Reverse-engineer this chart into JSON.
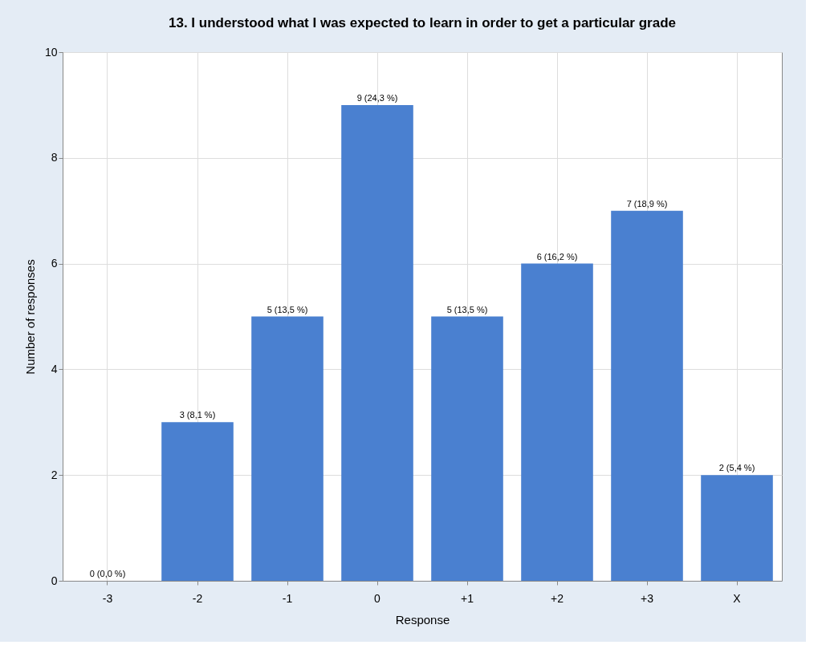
{
  "chart_data": {
    "type": "bar",
    "title": "13. I understood what I was expected to learn in order to get a particular grade",
    "xlabel": "Response",
    "ylabel": "Number of responses",
    "categories": [
      "-3",
      "-2",
      "-1",
      "0",
      "+1",
      "+2",
      "+3",
      "X"
    ],
    "values": [
      0,
      3,
      5,
      9,
      5,
      6,
      7,
      2
    ],
    "value_labels": [
      "0 (0,0 %)",
      "3 (8,1 %)",
      "5 (13,5 %)",
      "9 (24,3 %)",
      "5 (13,5 %)",
      "6 (16,2 %)",
      "7 (18,9 %)",
      "2 (5,4 %)"
    ],
    "color": "#4a80d0",
    "ylim": [
      0,
      10
    ],
    "yticks": [
      0,
      2,
      4,
      6,
      8,
      10
    ],
    "grid": true
  }
}
